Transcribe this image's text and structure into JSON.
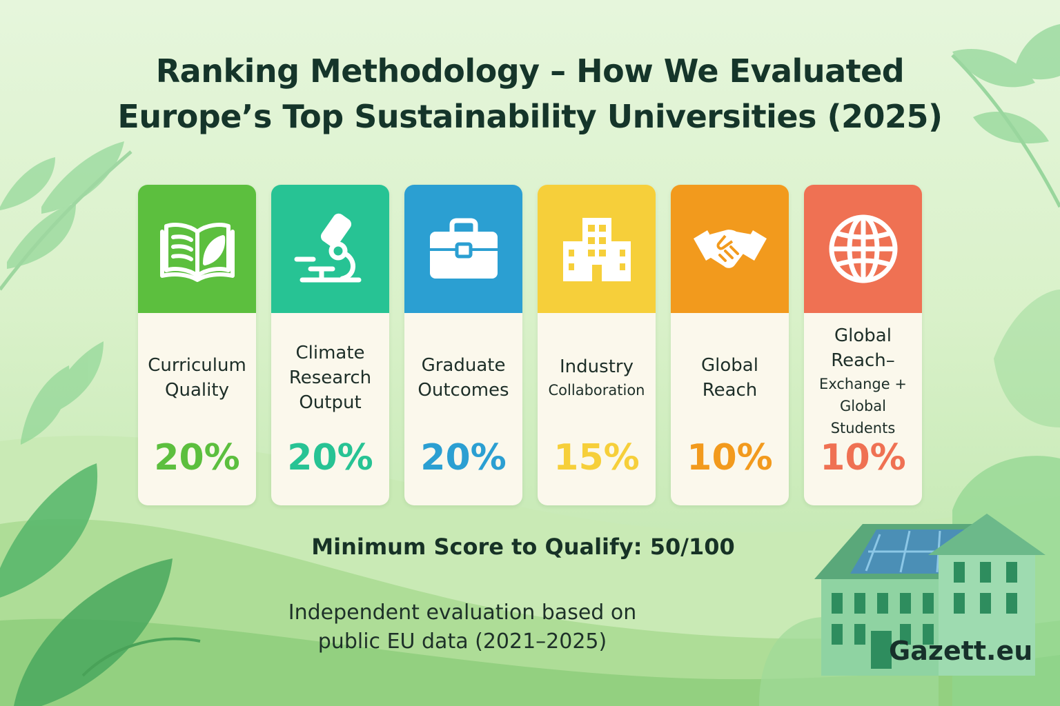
{
  "title": {
    "line1": "Ranking Methodology – How We Evaluated",
    "line2": "Europe’s Top Sustainability Universities (2025)"
  },
  "criteria": [
    {
      "label_lines": [
        "Curriculum",
        "Quality"
      ],
      "weight": "20%",
      "color": "#5cbf3e",
      "icon": "book-leaf-icon"
    },
    {
      "label_lines": [
        "Climate",
        "Research",
        "Output"
      ],
      "weight": "20%",
      "color": "#27c394",
      "icon": "microscope-icon"
    },
    {
      "label_lines": [
        "Graduate",
        "Outcomes"
      ],
      "weight": "20%",
      "color": "#2b9fd2",
      "icon": "briefcase-icon"
    },
    {
      "label_lines": [
        "Industry",
        "Collaboration"
      ],
      "weight": "15%",
      "color": "#f6cf3a",
      "icon": "building-icon"
    },
    {
      "label_lines": [
        "Global",
        "Reach"
      ],
      "weight": "10%",
      "color": "#f29a1d",
      "icon": "handshake-icon"
    },
    {
      "label_lines": [
        "Global",
        "Reach–",
        "Exchange +",
        "Global Students"
      ],
      "weight": "10%",
      "color": "#ef7153",
      "icon": "globe-icon"
    }
  ],
  "minimum_score": "Minimum Score to Qualify: 50/100",
  "note": {
    "line1": "Independent evaluation based on",
    "line2": "public EU data (2021–2025)"
  },
  "brand": "Gazett.eu"
}
